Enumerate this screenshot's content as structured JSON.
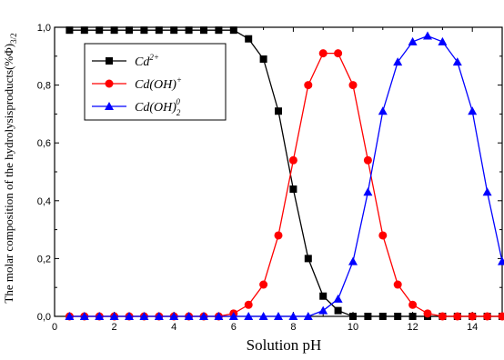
{
  "chart_data": {
    "type": "line",
    "xlabel": "Solution pH",
    "ylabel": "The molar composition of the hydrolysisproducts(%Φ)",
    "xlim": [
      0,
      15
    ],
    "ylim": [
      0,
      1.0
    ],
    "x_ticks": [
      "0",
      "2",
      "4",
      "6",
      "8",
      "10",
      "12",
      "14"
    ],
    "y_ticks": [
      "0,0",
      "0,2",
      "0,4",
      "0,6",
      "0,8",
      "1,0"
    ],
    "x": [
      0.5,
      1.0,
      1.5,
      2.0,
      2.5,
      3.0,
      3.5,
      4.0,
      4.5,
      5.0,
      5.5,
      6.0,
      6.5,
      7.0,
      7.5,
      8.0,
      8.5,
      9.0,
      9.5,
      10.0,
      10.5,
      11.0,
      11.5,
      12.0,
      12.5,
      13.0,
      13.5,
      14.0,
      14.5,
      15.0
    ],
    "series": [
      {
        "name": "Cd2+",
        "name_base": "Cd",
        "name_sup": "2+",
        "name_sub": "",
        "color": "#000000",
        "marker": "square",
        "values": [
          0.99,
          0.99,
          0.99,
          0.99,
          0.99,
          0.99,
          0.99,
          0.99,
          0.99,
          0.99,
          0.99,
          0.99,
          0.96,
          0.89,
          0.71,
          0.44,
          0.2,
          0.07,
          0.02,
          0.0,
          0.0,
          0.0,
          0.0,
          0.0,
          0.0,
          0.0,
          0.0,
          0.0,
          0.0,
          0.0
        ]
      },
      {
        "name": "Cd(OH)+",
        "name_base": "Cd(OH)",
        "name_sup": "+",
        "name_sub": "",
        "color": "#ff0000",
        "marker": "circle",
        "values": [
          0.0,
          0.0,
          0.0,
          0.0,
          0.0,
          0.0,
          0.0,
          0.0,
          0.0,
          0.0,
          0.0,
          0.01,
          0.04,
          0.11,
          0.28,
          0.54,
          0.8,
          0.91,
          0.91,
          0.8,
          0.54,
          0.28,
          0.11,
          0.04,
          0.01,
          0.0,
          0.0,
          0.0,
          0.0,
          0.0
        ]
      },
      {
        "name": "Cd(OH)2 0",
        "name_base": "Cd(OH)",
        "name_sup": "0",
        "name_sub": "2",
        "color": "#0000ff",
        "marker": "triangle",
        "values": [
          0.0,
          0.0,
          0.0,
          0.0,
          0.0,
          0.0,
          0.0,
          0.0,
          0.0,
          0.0,
          0.0,
          0.0,
          0.0,
          0.0,
          0.0,
          0.0,
          0.0,
          0.02,
          0.06,
          0.19,
          0.43,
          0.71,
          0.88,
          0.95,
          0.97,
          0.95,
          0.88,
          0.71,
          0.43,
          0.19
        ]
      }
    ],
    "legend_position": "top-left",
    "grid": false
  }
}
